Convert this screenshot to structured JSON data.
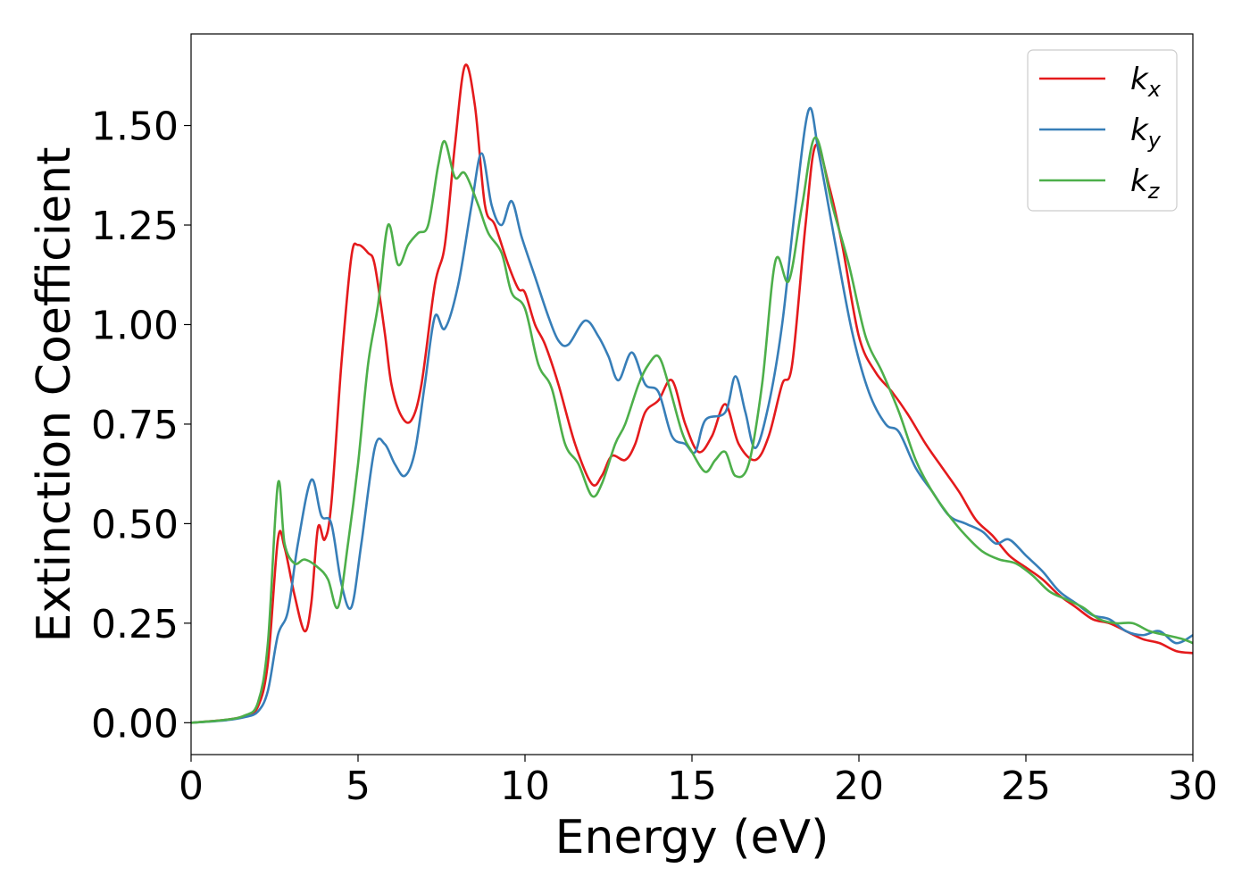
{
  "chart_data": {
    "type": "line",
    "xlabel": "Energy (eV)",
    "ylabel": "Extinction Coefficient",
    "xlim": [
      0,
      30
    ],
    "ylim": [
      -0.08,
      1.73
    ],
    "xticks": [
      0,
      5,
      10,
      15,
      20,
      25,
      30
    ],
    "xtick_labels": [
      "0",
      "5",
      "10",
      "15",
      "20",
      "25",
      "30"
    ],
    "yticks": [
      0.0,
      0.25,
      0.5,
      0.75,
      1.0,
      1.25,
      1.5
    ],
    "ytick_labels": [
      "0.00",
      "0.25",
      "0.50",
      "0.75",
      "1.00",
      "1.25",
      "1.50"
    ],
    "grid": false,
    "legend_position": "top-right",
    "series": [
      {
        "name": "k_x",
        "label_main": "k",
        "label_sub": "x",
        "color": "#e41a1c",
        "points": [
          [
            0,
            0
          ],
          [
            1,
            0.007
          ],
          [
            1.6,
            0.017
          ],
          [
            2,
            0.04
          ],
          [
            2.3,
            0.15
          ],
          [
            2.6,
            0.46
          ],
          [
            2.8,
            0.44
          ],
          [
            3.1,
            0.32
          ],
          [
            3.4,
            0.23
          ],
          [
            3.6,
            0.3
          ],
          [
            3.8,
            0.49
          ],
          [
            4,
            0.46
          ],
          [
            4.2,
            0.55
          ],
          [
            4.5,
            0.9
          ],
          [
            4.8,
            1.17
          ],
          [
            5,
            1.2
          ],
          [
            5.3,
            1.18
          ],
          [
            5.5,
            1.15
          ],
          [
            5.8,
            0.98
          ],
          [
            6,
            0.85
          ],
          [
            6.3,
            0.77
          ],
          [
            6.6,
            0.76
          ],
          [
            6.9,
            0.85
          ],
          [
            7.3,
            1.1
          ],
          [
            7.6,
            1.2
          ],
          [
            7.9,
            1.45
          ],
          [
            8.2,
            1.65
          ],
          [
            8.5,
            1.55
          ],
          [
            8.8,
            1.3
          ],
          [
            9.1,
            1.25
          ],
          [
            9.5,
            1.15
          ],
          [
            9.8,
            1.09
          ],
          [
            10,
            1.08
          ],
          [
            10.3,
            1.0
          ],
          [
            10.6,
            0.95
          ],
          [
            11,
            0.85
          ],
          [
            11.5,
            0.7
          ],
          [
            12,
            0.6
          ],
          [
            12.3,
            0.62
          ],
          [
            12.6,
            0.67
          ],
          [
            13,
            0.66
          ],
          [
            13.3,
            0.7
          ],
          [
            13.6,
            0.78
          ],
          [
            14,
            0.81
          ],
          [
            14.4,
            0.86
          ],
          [
            14.8,
            0.75
          ],
          [
            15.2,
            0.68
          ],
          [
            15.6,
            0.72
          ],
          [
            16,
            0.8
          ],
          [
            16.4,
            0.7
          ],
          [
            16.9,
            0.66
          ],
          [
            17.3,
            0.72
          ],
          [
            17.7,
            0.85
          ],
          [
            18,
            0.9
          ],
          [
            18.4,
            1.25
          ],
          [
            18.7,
            1.45
          ],
          [
            19.1,
            1.35
          ],
          [
            19.5,
            1.2
          ],
          [
            20,
            0.97
          ],
          [
            20.5,
            0.88
          ],
          [
            21,
            0.83
          ],
          [
            21.5,
            0.77
          ],
          [
            22,
            0.7
          ],
          [
            22.5,
            0.64
          ],
          [
            23,
            0.58
          ],
          [
            23.5,
            0.51
          ],
          [
            24,
            0.47
          ],
          [
            24.5,
            0.42
          ],
          [
            25,
            0.39
          ],
          [
            25.5,
            0.36
          ],
          [
            26,
            0.32
          ],
          [
            26.5,
            0.29
          ],
          [
            27,
            0.26
          ],
          [
            27.5,
            0.25
          ],
          [
            28,
            0.23
          ],
          [
            28.5,
            0.21
          ],
          [
            29,
            0.2
          ],
          [
            29.5,
            0.18
          ],
          [
            30,
            0.175
          ]
        ]
      },
      {
        "name": "k_y",
        "label_main": "k",
        "label_sub": "y",
        "color": "#377eb8",
        "points": [
          [
            0,
            0
          ],
          [
            1,
            0.006
          ],
          [
            1.6,
            0.014
          ],
          [
            2,
            0.028
          ],
          [
            2.3,
            0.08
          ],
          [
            2.6,
            0.22
          ],
          [
            2.9,
            0.28
          ],
          [
            3.2,
            0.45
          ],
          [
            3.6,
            0.61
          ],
          [
            3.9,
            0.52
          ],
          [
            4.2,
            0.5
          ],
          [
            4.5,
            0.35
          ],
          [
            4.8,
            0.29
          ],
          [
            5.1,
            0.45
          ],
          [
            5.5,
            0.69
          ],
          [
            5.8,
            0.7
          ],
          [
            6.1,
            0.65
          ],
          [
            6.4,
            0.62
          ],
          [
            6.7,
            0.68
          ],
          [
            7,
            0.85
          ],
          [
            7.3,
            1.02
          ],
          [
            7.6,
            0.99
          ],
          [
            8,
            1.1
          ],
          [
            8.4,
            1.3
          ],
          [
            8.7,
            1.43
          ],
          [
            9,
            1.3
          ],
          [
            9.3,
            1.25
          ],
          [
            9.6,
            1.31
          ],
          [
            9.9,
            1.22
          ],
          [
            10.3,
            1.12
          ],
          [
            10.7,
            1.02
          ],
          [
            11,
            0.96
          ],
          [
            11.3,
            0.95
          ],
          [
            11.8,
            1.01
          ],
          [
            12.2,
            0.97
          ],
          [
            12.5,
            0.92
          ],
          [
            12.8,
            0.86
          ],
          [
            13.2,
            0.93
          ],
          [
            13.6,
            0.85
          ],
          [
            14,
            0.83
          ],
          [
            14.4,
            0.72
          ],
          [
            14.8,
            0.7
          ],
          [
            15.1,
            0.68
          ],
          [
            15.4,
            0.76
          ],
          [
            16,
            0.78
          ],
          [
            16.3,
            0.87
          ],
          [
            16.6,
            0.78
          ],
          [
            16.9,
            0.69
          ],
          [
            17.3,
            0.8
          ],
          [
            17.7,
            1.0
          ],
          [
            18.1,
            1.3
          ],
          [
            18.5,
            1.54
          ],
          [
            18.8,
            1.43
          ],
          [
            19.3,
            1.2
          ],
          [
            19.8,
            0.98
          ],
          [
            20.3,
            0.83
          ],
          [
            20.8,
            0.75
          ],
          [
            21.2,
            0.73
          ],
          [
            21.7,
            0.64
          ],
          [
            22.2,
            0.58
          ],
          [
            22.7,
            0.52
          ],
          [
            23.2,
            0.5
          ],
          [
            23.7,
            0.48
          ],
          [
            24.1,
            0.45
          ],
          [
            24.5,
            0.46
          ],
          [
            25,
            0.42
          ],
          [
            25.5,
            0.38
          ],
          [
            26,
            0.33
          ],
          [
            26.5,
            0.3
          ],
          [
            27,
            0.27
          ],
          [
            27.5,
            0.26
          ],
          [
            28,
            0.23
          ],
          [
            28.5,
            0.22
          ],
          [
            29,
            0.23
          ],
          [
            29.5,
            0.2
          ],
          [
            30,
            0.22
          ]
        ]
      },
      {
        "name": "k_z",
        "label_main": "k",
        "label_sub": "z",
        "color": "#4daf4a",
        "points": [
          [
            0,
            0
          ],
          [
            1,
            0.007
          ],
          [
            1.6,
            0.018
          ],
          [
            2,
            0.05
          ],
          [
            2.3,
            0.2
          ],
          [
            2.6,
            0.6
          ],
          [
            2.8,
            0.45
          ],
          [
            3.1,
            0.4
          ],
          [
            3.4,
            0.41
          ],
          [
            3.8,
            0.39
          ],
          [
            4.1,
            0.36
          ],
          [
            4.4,
            0.29
          ],
          [
            4.7,
            0.45
          ],
          [
            5,
            0.65
          ],
          [
            5.3,
            0.9
          ],
          [
            5.6,
            1.05
          ],
          [
            5.9,
            1.25
          ],
          [
            6.2,
            1.15
          ],
          [
            6.5,
            1.2
          ],
          [
            6.8,
            1.23
          ],
          [
            7.1,
            1.25
          ],
          [
            7.4,
            1.4
          ],
          [
            7.6,
            1.46
          ],
          [
            7.9,
            1.37
          ],
          [
            8.2,
            1.38
          ],
          [
            8.6,
            1.3
          ],
          [
            8.9,
            1.23
          ],
          [
            9.3,
            1.18
          ],
          [
            9.6,
            1.08
          ],
          [
            10,
            1.04
          ],
          [
            10.4,
            0.9
          ],
          [
            10.8,
            0.84
          ],
          [
            11.2,
            0.7
          ],
          [
            11.6,
            0.65
          ],
          [
            12,
            0.57
          ],
          [
            12.3,
            0.6
          ],
          [
            12.7,
            0.7
          ],
          [
            13,
            0.75
          ],
          [
            13.4,
            0.85
          ],
          [
            13.7,
            0.9
          ],
          [
            14,
            0.92
          ],
          [
            14.3,
            0.85
          ],
          [
            14.7,
            0.73
          ],
          [
            15,
            0.68
          ],
          [
            15.4,
            0.63
          ],
          [
            15.7,
            0.66
          ],
          [
            16,
            0.68
          ],
          [
            16.3,
            0.62
          ],
          [
            16.7,
            0.65
          ],
          [
            17.1,
            0.85
          ],
          [
            17.5,
            1.16
          ],
          [
            17.9,
            1.11
          ],
          [
            18.3,
            1.3
          ],
          [
            18.7,
            1.47
          ],
          [
            19.2,
            1.3
          ],
          [
            19.7,
            1.15
          ],
          [
            20.2,
            0.97
          ],
          [
            20.7,
            0.88
          ],
          [
            21.2,
            0.78
          ],
          [
            21.7,
            0.66
          ],
          [
            22.2,
            0.58
          ],
          [
            22.7,
            0.52
          ],
          [
            23.2,
            0.47
          ],
          [
            23.7,
            0.43
          ],
          [
            24.2,
            0.41
          ],
          [
            24.7,
            0.4
          ],
          [
            25.2,
            0.37
          ],
          [
            25.7,
            0.33
          ],
          [
            26.2,
            0.31
          ],
          [
            26.7,
            0.29
          ],
          [
            27.2,
            0.26
          ],
          [
            27.7,
            0.25
          ],
          [
            28.2,
            0.25
          ],
          [
            28.7,
            0.23
          ],
          [
            29.2,
            0.22
          ],
          [
            29.7,
            0.21
          ],
          [
            30,
            0.2
          ]
        ]
      }
    ]
  }
}
